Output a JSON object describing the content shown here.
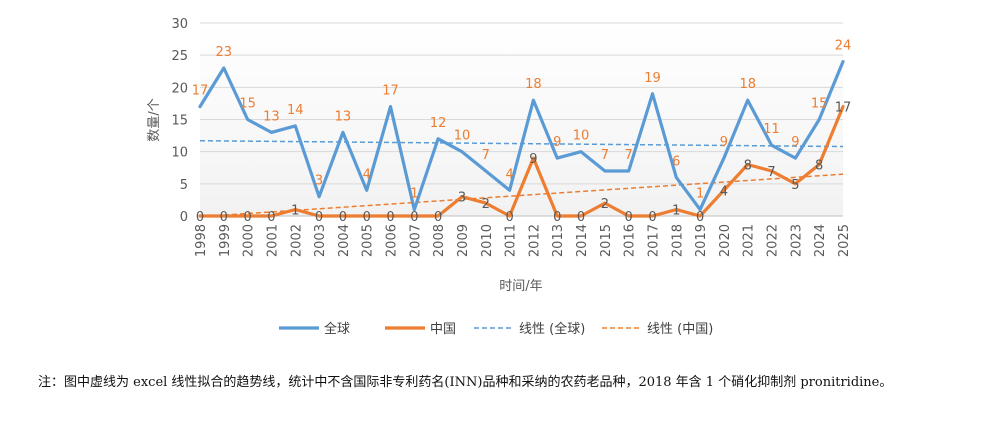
{
  "chart_data": {
    "type": "line",
    "categories": [
      "1998",
      "1999",
      "2000",
      "2001",
      "2002",
      "2003",
      "2004",
      "2005",
      "2006",
      "2007",
      "2008",
      "2009",
      "2010",
      "2011",
      "2012",
      "2013",
      "2014",
      "2015",
      "2016",
      "2017",
      "2018",
      "2019",
      "2020",
      "2021",
      "2022",
      "2023",
      "2024",
      "2025"
    ],
    "series": [
      {
        "name": "全球",
        "color": "#5B9BD5",
        "values": [
          17,
          23,
          15,
          13,
          14,
          3,
          13,
          4,
          17,
          1,
          12,
          10,
          7,
          4,
          18,
          9,
          10,
          7,
          7,
          19,
          6,
          1,
          9,
          18,
          11,
          9,
          15,
          24
        ]
      },
      {
        "name": "中国",
        "color": "#ED7D31",
        "values": [
          0,
          0,
          0,
          0,
          1,
          0,
          0,
          0,
          0,
          0,
          0,
          3,
          2,
          0,
          9,
          0,
          0,
          2,
          0,
          0,
          1,
          0,
          4,
          8,
          7,
          5,
          8,
          17
        ]
      }
    ],
    "trendlines": [
      {
        "name": "线性 (全球)",
        "color": "#5B9BD5",
        "start": 11.7,
        "end": 10.8
      },
      {
        "name": "线性 (中国)",
        "color": "#ED7D31",
        "start": -0.1,
        "end": 6.5
      }
    ],
    "global_label_color": "#ED7D31",
    "china_label_color": "#595959",
    "ylim": [
      0,
      30
    ],
    "yticks": [
      0,
      5,
      10,
      15,
      20,
      25,
      30
    ],
    "ylabel": "数量/个",
    "xlabel": "时间/年",
    "grid": true,
    "legend_position": "bottom"
  },
  "note": "注：图中虚线为 excel 线性拟合的趋势线，统计中不含国际非专利药名(INN)品种和采纳的农药老品种，2018 年含 1 个硝化抑制剂 pronitridine。"
}
